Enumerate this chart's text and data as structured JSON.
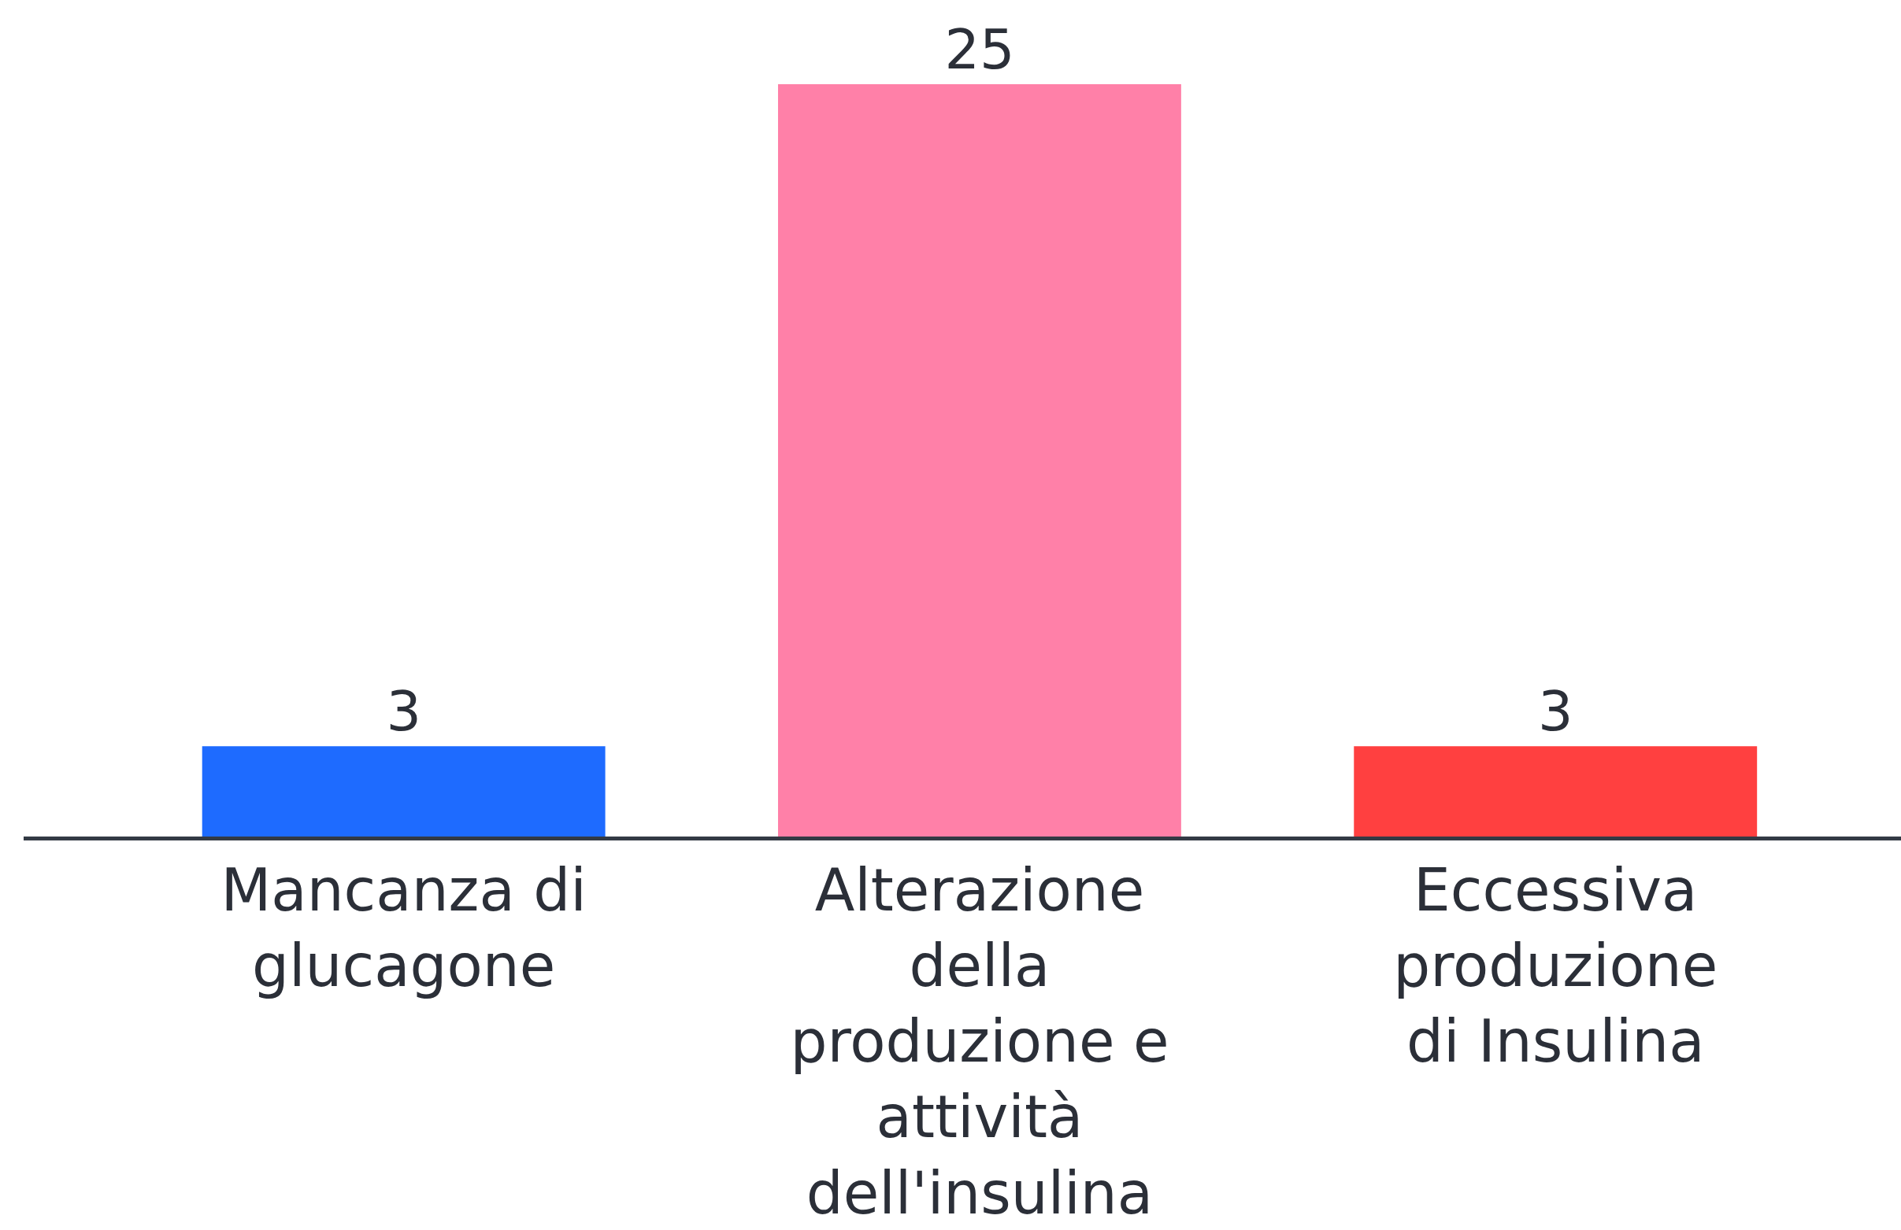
{
  "chart_data": {
    "type": "bar",
    "categories": [
      "Mancanza di glucagone",
      "Alterazione della produzione e attività dell'insulina",
      "Eccessiva produzione di Insulina"
    ],
    "values": [
      3,
      25,
      3
    ],
    "colors": [
      "#1e6bff",
      "#ff80a8",
      "#ff4040"
    ],
    "ylim": [
      0,
      27.8
    ],
    "data_labels": true
  }
}
